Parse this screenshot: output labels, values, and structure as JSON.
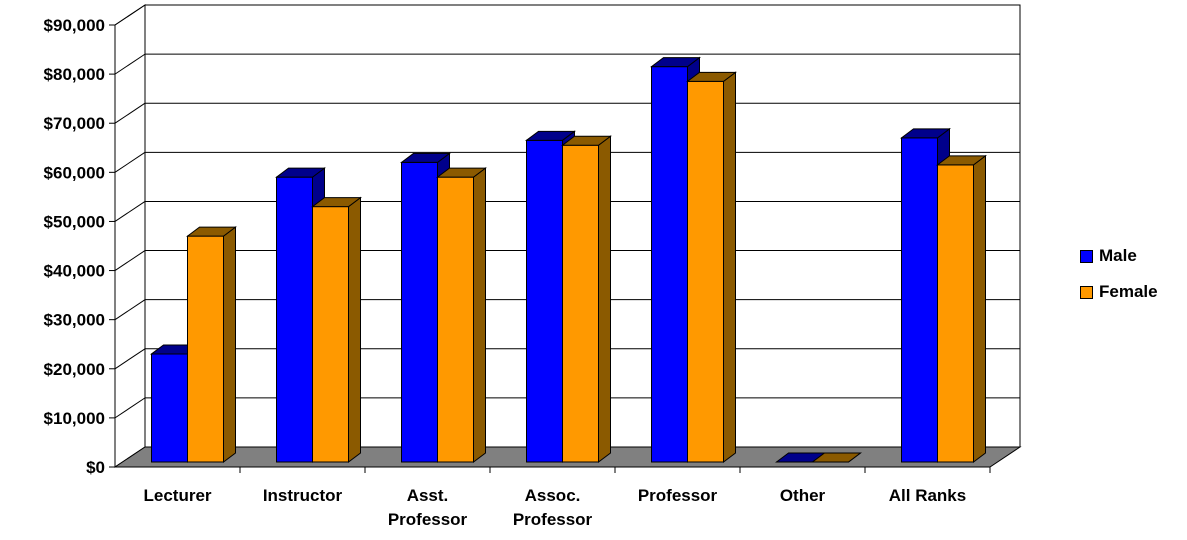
{
  "chart_data": {
    "type": "bar",
    "title": "",
    "xlabel": "",
    "ylabel": "",
    "categories": [
      [
        "Lecturer"
      ],
      [
        "Instructor"
      ],
      [
        "Asst.",
        "Professor"
      ],
      [
        "Assoc.",
        "Professor"
      ],
      [
        "Professor"
      ],
      [
        "Other"
      ],
      [
        "All Ranks"
      ]
    ],
    "series": [
      {
        "name": "Male",
        "color": "#0000FF",
        "side_color": "#00008B",
        "values": [
          22000,
          58000,
          61000,
          65500,
          80500,
          0,
          66000
        ]
      },
      {
        "name": "Female",
        "color": "#FF9900",
        "side_color": "#8B5A00",
        "values": [
          46000,
          52000,
          58000,
          64500,
          77500,
          0,
          60500
        ]
      }
    ],
    "ylim": [
      0,
      90000
    ],
    "yticks": [
      0,
      10000,
      20000,
      30000,
      40000,
      50000,
      60000,
      70000,
      80000,
      90000
    ],
    "ytick_labels": [
      "$0",
      "$10,000",
      "$20,000",
      "$30,000",
      "$40,000",
      "$50,000",
      "$60,000",
      "$70,000",
      "$80,000",
      "$90,000"
    ],
    "grid": true,
    "legend_position": "right",
    "floor_color": "#808080"
  }
}
